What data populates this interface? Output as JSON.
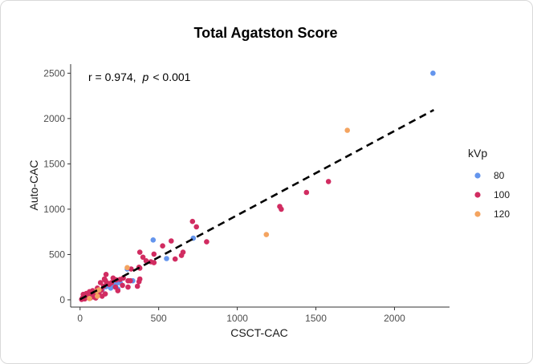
{
  "chart_data": {
    "type": "scatter",
    "title": "Total Agatston Score",
    "xlabel": "CSCT-CAC",
    "ylabel": "Auto-CAC",
    "xlim": [
      -60,
      2350
    ],
    "ylim": [
      -80,
      2600
    ],
    "xticks": [
      0,
      500,
      1000,
      1500,
      2000
    ],
    "yticks": [
      0,
      500,
      1000,
      1500,
      2000,
      2500
    ],
    "grid": false,
    "legend": {
      "title": "kVp",
      "placement": "right"
    },
    "annotation": {
      "r_text": "r = 0.974,",
      "p_symbol": "p",
      "p_text": "< 0.001"
    },
    "regression_line": {
      "style": "dashed",
      "color": "#000000",
      "x": [
        0,
        2250
      ],
      "y": [
        5,
        2095
      ]
    },
    "series": [
      {
        "name": "80",
        "color": "#6495ED",
        "points": [
          [
            2245,
            2500
          ],
          [
            465,
            660
          ],
          [
            720,
            680
          ],
          [
            550,
            455
          ],
          [
            300,
            340
          ],
          [
            335,
            210
          ],
          [
            185,
            165
          ],
          [
            210,
            150
          ],
          [
            195,
            130
          ],
          [
            230,
            175
          ],
          [
            255,
            190
          ],
          [
            165,
            145
          ],
          [
            240,
            120
          ],
          [
            140,
            110
          ],
          [
            210,
            190
          ],
          [
            175,
            155
          ]
        ]
      },
      {
        "name": "100",
        "color": "#D12C61",
        "points": [
          [
            1580,
            1305
          ],
          [
            1440,
            1185
          ],
          [
            1270,
            1030
          ],
          [
            1280,
            1000
          ],
          [
            715,
            865
          ],
          [
            740,
            805
          ],
          [
            805,
            640
          ],
          [
            580,
            650
          ],
          [
            655,
            525
          ],
          [
            645,
            490
          ],
          [
            605,
            450
          ],
          [
            525,
            595
          ],
          [
            470,
            505
          ],
          [
            470,
            410
          ],
          [
            450,
            420
          ],
          [
            380,
            525
          ],
          [
            400,
            470
          ],
          [
            420,
            430
          ],
          [
            375,
            360
          ],
          [
            380,
            350
          ],
          [
            325,
            340
          ],
          [
            305,
            210
          ],
          [
            380,
            230
          ],
          [
            375,
            200
          ],
          [
            320,
            210
          ],
          [
            305,
            140
          ],
          [
            365,
            150
          ],
          [
            275,
            240
          ],
          [
            255,
            225
          ],
          [
            210,
            240
          ],
          [
            165,
            280
          ],
          [
            155,
            230
          ],
          [
            160,
            215
          ],
          [
            230,
            220
          ],
          [
            200,
            190
          ],
          [
            185,
            170
          ],
          [
            170,
            190
          ],
          [
            150,
            150
          ],
          [
            130,
            190
          ],
          [
            110,
            130
          ],
          [
            120,
            80
          ],
          [
            100,
            60
          ],
          [
            90,
            30
          ],
          [
            75,
            50
          ],
          [
            65,
            20
          ],
          [
            50,
            40
          ],
          [
            30,
            10
          ],
          [
            20,
            60
          ],
          [
            10,
            5
          ],
          [
            40,
            70
          ],
          [
            60,
            90
          ],
          [
            80,
            100
          ],
          [
            135,
            105
          ],
          [
            160,
            65
          ],
          [
            240,
            100
          ],
          [
            225,
            140
          ],
          [
            270,
            160
          ],
          [
            140,
            40
          ],
          [
            100,
            20
          ],
          [
            15,
            20
          ]
        ]
      },
      {
        "name": "120",
        "color": "#F4A460",
        "points": [
          [
            1700,
            1870
          ],
          [
            1185,
            720
          ],
          [
            300,
            355
          ],
          [
            120,
            110
          ],
          [
            105,
            95
          ],
          [
            110,
            40
          ],
          [
            60,
            15
          ]
        ]
      }
    ]
  }
}
